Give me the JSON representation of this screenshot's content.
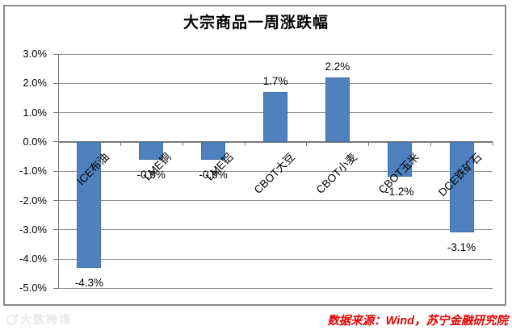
{
  "title": "大宗商品一周涨跌幅",
  "source_caption": "数据来源：Wind，苏宁金融研究院",
  "watermark_text": "大数跨境",
  "colors": {
    "bar": "#4E81BD",
    "bar_border": "#44729F",
    "gridline": "#909090",
    "axis": "#787878",
    "frame_border": "#8A8A8A",
    "source_text": "#E60000",
    "watermark": "#E8E8E8",
    "text": "#000000"
  },
  "chart_data": {
    "type": "bar",
    "title": "大宗商品一周涨跌幅",
    "categories": [
      "ICE布油",
      "LME铜",
      "LME铝",
      "CBOT大豆",
      "CBOT小麦",
      "CBOT玉米",
      "DCE铁矿石"
    ],
    "values": [
      -4.3,
      -0.6,
      -0.6,
      1.7,
      2.2,
      -1.2,
      -3.1
    ],
    "data_labels": [
      "-4.3%",
      "-0.6%",
      "-0.6%",
      "1.7%",
      "2.2%",
      "-1.2%",
      "-3.1%"
    ],
    "xlabel": "",
    "ylabel": "",
    "ylim": [
      -5.0,
      3.0
    ],
    "ytick_step": 1.0,
    "ytick_labels": [
      "3.0%",
      "2.0%",
      "1.0%",
      "0.0%",
      "-1.0%",
      "-2.0%",
      "-3.0%",
      "-4.0%",
      "-5.0%"
    ],
    "grid": true,
    "legend": null,
    "data_label_position": "outside-end",
    "category_label_rotation_deg": 45,
    "bar_color": "#4E81BD"
  }
}
